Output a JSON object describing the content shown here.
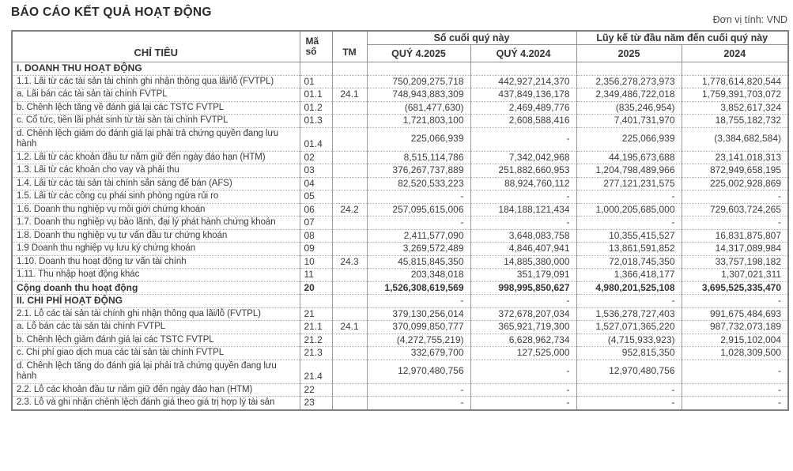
{
  "page": {
    "title": "BÁO CÁO KẾT QUẢ HOẠT ĐỘNG",
    "unit_note": "Đơn vị tính: VND"
  },
  "table": {
    "headers": {
      "chi_tieu": "CHỈ TIÊU",
      "ma_so": "Mã số",
      "tm": "TM",
      "group_quarter": "Số cuối quý này",
      "group_ytd": "Lũy kế từ đầu năm đến cuối quý này",
      "col_q_2025": "QUÝ 4.2025",
      "col_q_2024": "QUÝ 4.2024",
      "col_y_2025": "2025",
      "col_y_2024": "2024"
    },
    "rows": [
      {
        "label": "I. DOANH THU HOẠT ĐỘNG",
        "code": "",
        "tm": "",
        "values": [
          "",
          "",
          "",
          ""
        ],
        "kind": "section"
      },
      {
        "label": "1.1. Lãi từ các tài sản tài chính ghi nhận thông qua lãi/lỗ (FVTPL)",
        "code": "01",
        "tm": "",
        "values": [
          "750,209,275,718",
          "442,927,214,370",
          "2,356,278,273,973",
          "1,778,614,820,544"
        ],
        "kind": "item"
      },
      {
        "label": "a. Lãi bán các tài sản tài chính FVTPL",
        "code": "01.1",
        "tm": "24.1",
        "values": [
          "748,943,883,309",
          "437,849,136,178",
          "2,349,486,722,018",
          "1,759,391,703,072"
        ],
        "kind": "item"
      },
      {
        "label": "b. Chênh lệch tăng về đánh giá lại các TSTC FVTPL",
        "code": "01.2",
        "tm": "",
        "values": [
          "(681,477,630)",
          "2,469,489,776",
          "(835,246,954)",
          "3,852,617,324"
        ],
        "kind": "item"
      },
      {
        "label": "c. Cổ tức, tiền lãi phát sinh từ tài sản tài chính FVTPL",
        "code": "01.3",
        "tm": "",
        "values": [
          "1,721,803,100",
          "2,608,588,416",
          "7,401,731,970",
          "18,755,182,732"
        ],
        "kind": "item"
      },
      {
        "label": "d. Chênh lệch giảm do đánh giá lại phải trả chứng quyền đang lưu hành",
        "code": "01.4",
        "tm": "",
        "values": [
          "225,066,939",
          "-",
          "225,066,939",
          "(3,384,682,584)"
        ],
        "kind": "item",
        "wrap": true
      },
      {
        "label": "1.2. Lãi từ các khoản đầu tư nắm giữ đến ngày đáo hạn (HTM)",
        "code": "02",
        "tm": "",
        "values": [
          "8,515,114,786",
          "7,342,042,968",
          "44,195,673,688",
          "23,141,018,313"
        ],
        "kind": "item"
      },
      {
        "label": "1.3. Lãi từ các khoản cho vay và phải thu",
        "code": "03",
        "tm": "",
        "values": [
          "376,267,737,889",
          "251,882,660,953",
          "1,204,798,489,966",
          "872,949,658,195"
        ],
        "kind": "item"
      },
      {
        "label": "1.4. Lãi từ các tài sản tài chính sẵn sàng để bán (AFS)",
        "code": "04",
        "tm": "",
        "values": [
          "82,520,533,223",
          "88,924,760,112",
          "277,121,231,575",
          "225,002,928,869"
        ],
        "kind": "item"
      },
      {
        "label": "1.5. Lãi từ các công cụ phái sinh phòng ngừa rủi ro",
        "code": "05",
        "tm": "",
        "values": [
          "-",
          "-",
          "-",
          "-"
        ],
        "kind": "item"
      },
      {
        "label": "1.6. Doanh thu nghiệp vụ môi giới chứng khoán",
        "code": "06",
        "tm": "24.2",
        "values": [
          "257,095,615,006",
          "184,188,121,434",
          "1,000,205,685,000",
          "729,603,724,265"
        ],
        "kind": "item"
      },
      {
        "label": "1.7. Doanh thu nghiệp vụ bảo lãnh, đại lý phát hành chứng khoán",
        "code": "07",
        "tm": "",
        "values": [
          "-",
          "-",
          "-",
          "-"
        ],
        "kind": "item"
      },
      {
        "label": "1.8. Doanh thu nghiệp vụ tư vấn đầu tư chứng khoán",
        "code": "08",
        "tm": "",
        "values": [
          "2,411,577,090",
          "3,648,083,758",
          "10,355,415,527",
          "16,831,875,807"
        ],
        "kind": "item"
      },
      {
        "label": "1.9 Doanh thu nghiệp vụ lưu ký chứng khoán",
        "code": "09",
        "tm": "",
        "values": [
          "3,269,572,489",
          "4,846,407,941",
          "13,861,591,852",
          "14,317,089,984"
        ],
        "kind": "item"
      },
      {
        "label": "1.10. Doanh thu hoạt động tư vấn tài chính",
        "code": "10",
        "tm": "24.3",
        "values": [
          "45,815,845,350",
          "14,885,380,000",
          "72,018,745,350",
          "33,757,198,182"
        ],
        "kind": "item"
      },
      {
        "label": "1.11. Thu nhập hoạt động khác",
        "code": "11",
        "tm": "",
        "values": [
          "203,348,018",
          "351,179,091",
          "1,366,418,177",
          "1,307,021,311"
        ],
        "kind": "item"
      },
      {
        "label": "Cộng doanh thu hoạt động",
        "code": "20",
        "tm": "",
        "values": [
          "1,526,308,619,569",
          "998,995,850,627",
          "4,980,201,525,108",
          "3,695,525,335,470"
        ],
        "kind": "total"
      },
      {
        "label": "II. CHI PHÍ HOẠT ĐỘNG",
        "code": "",
        "tm": "",
        "values": [
          "-",
          "-",
          "-",
          "-"
        ],
        "kind": "section"
      },
      {
        "label": "2.1. Lỗ các tài sản tài chính ghi nhận thông qua lãi/lỗ (FVTPL)",
        "code": "21",
        "tm": "",
        "values": [
          "379,130,256,014",
          "372,678,207,034",
          "1,536,278,727,403",
          "991,675,484,693"
        ],
        "kind": "item"
      },
      {
        "label": "a. Lỗ bán các tài sản tài chính FVTPL",
        "code": "21.1",
        "tm": "24.1",
        "values": [
          "370,099,850,777",
          "365,921,719,300",
          "1,527,071,365,220",
          "987,732,073,189"
        ],
        "kind": "item"
      },
      {
        "label": "b. Chênh lệch giảm đánh giá lại các TSTC FVTPL",
        "code": "21.2",
        "tm": "",
        "values": [
          "(4,272,755,219)",
          "6,628,962,734",
          "(4,715,933,923)",
          "2,915,102,004"
        ],
        "kind": "item"
      },
      {
        "label": "c. Chi phí giao dịch mua các tài sản tài chính FVTPL",
        "code": "21.3",
        "tm": "",
        "values": [
          "332,679,700",
          "127,525,000",
          "952,815,350",
          "1,028,309,500"
        ],
        "kind": "item"
      },
      {
        "label": "d. Chênh lệch tăng do đánh giá lại phải trả chứng quyền đang lưu hành",
        "code": "21.4",
        "tm": "",
        "values": [
          "12,970,480,756",
          "-",
          "12,970,480,756",
          "-"
        ],
        "kind": "item",
        "wrap": true
      },
      {
        "label": "2.2. Lỗ các khoản đầu tư nắm giữ đến ngày đáo hạn (HTM)",
        "code": "22",
        "tm": "",
        "values": [
          "-",
          "-",
          "-",
          "-"
        ],
        "kind": "item"
      },
      {
        "label": "2.3. Lỗ và ghi nhận chênh lệch đánh giá theo giá trị hợp lý tài sản",
        "code": "23",
        "tm": "",
        "values": [
          "-",
          "-",
          "-",
          "-"
        ],
        "kind": "item"
      }
    ]
  }
}
